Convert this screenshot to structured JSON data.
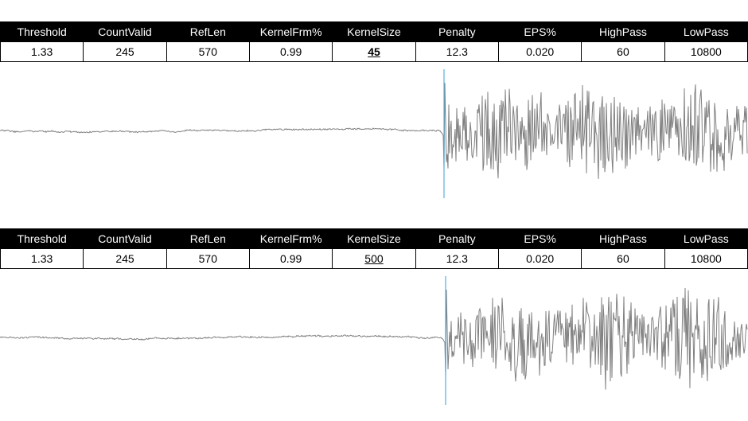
{
  "panels": [
    {
      "headers": [
        "Threshold",
        "CountValid",
        "RefLen",
        "KernelFrm%",
        "KernelSize",
        "Penalty",
        "EPS%",
        "HighPass",
        "LowPass"
      ],
      "values": [
        "1.33",
        "245",
        "570",
        "0.99",
        "45",
        "12.3",
        "0.020",
        "60",
        "10800"
      ],
      "highlight_index": 4,
      "highlight_color": "#000000",
      "waveform": {
        "trace_color": "#808080",
        "marker_color": "#5aaee0",
        "onset_fraction": 0.594
      }
    },
    {
      "headers": [
        "Threshold",
        "CountValid",
        "RefLen",
        "KernelFrm%",
        "KernelSize",
        "Penalty",
        "EPS%",
        "HighPass",
        "LowPass"
      ],
      "values": [
        "1.33",
        "245",
        "570",
        "0.99",
        "500",
        "12.3",
        "0.020",
        "60",
        "10800"
      ],
      "highlight_index": 4,
      "highlight_color": "#c00000",
      "waveform": {
        "trace_color": "#808080",
        "marker_color": "#5aaee0",
        "onset_fraction": 0.596
      }
    }
  ]
}
